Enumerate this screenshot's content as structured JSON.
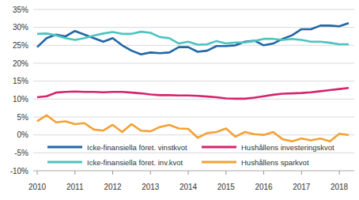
{
  "chart_data": {
    "type": "line",
    "categories": [
      "2010",
      null,
      null,
      null,
      "2011",
      null,
      null,
      null,
      "2012",
      null,
      null,
      null,
      "2013",
      null,
      null,
      null,
      "2014",
      null,
      null,
      null,
      "2015",
      null,
      null,
      null,
      "2016",
      null,
      null,
      null,
      "2017",
      null,
      null,
      null,
      "2018",
      null
    ],
    "series": [
      {
        "name": "Icke-finansiella föret. vinstkvot",
        "color": "#2166a6",
        "values": [
          24.5,
          27,
          28,
          27.5,
          29,
          28,
          27,
          26,
          27,
          25,
          23.5,
          22.5,
          23,
          22.8,
          23,
          24.5,
          24.5,
          23.2,
          23.5,
          24.8,
          24.8,
          25,
          26,
          26.3,
          25,
          25.5,
          26.8,
          27.8,
          29.5,
          29.5,
          30.5,
          30.5,
          30.3,
          31.2
        ]
      },
      {
        "name": "Icke-finansiella föret. inv.kvot",
        "color": "#4cc4bf",
        "values": [
          28.2,
          28.3,
          27.8,
          27,
          26.5,
          27,
          27.7,
          28.3,
          28.7,
          28.2,
          28.2,
          28.8,
          28.5,
          27.3,
          27,
          25.5,
          26,
          25.2,
          25.3,
          26.2,
          25.5,
          25.8,
          25.8,
          26.2,
          26.8,
          26.8,
          26.5,
          26.8,
          26.5,
          26,
          26,
          25.7,
          25.3,
          25.3
        ]
      },
      {
        "name": "Hushållens investeringskvot",
        "color": "#d4256f",
        "values": [
          10.5,
          10.8,
          11.8,
          12,
          12.1,
          12,
          12,
          11.9,
          12,
          12,
          11.8,
          11.6,
          11.3,
          11.1,
          11.1,
          11,
          11,
          10.9,
          10.7,
          10.5,
          10.2,
          10.1,
          10.1,
          10.4,
          10.8,
          11.2,
          11.5,
          11.6,
          11.7,
          11.9,
          12.2,
          12.5,
          12.8,
          13.1
        ]
      },
      {
        "name": "Hushållens sparkvot",
        "color": "#f4a135",
        "values": [
          3.8,
          5.5,
          3.5,
          3.8,
          3,
          3.3,
          1.5,
          1.2,
          2.8,
          0.8,
          3,
          1.2,
          1,
          2.2,
          2.8,
          1.8,
          1.7,
          -0.8,
          0.5,
          0.8,
          1.8,
          -0.5,
          0.8,
          0.2,
          0,
          0.8,
          -1.2,
          -1.8,
          -1,
          -1.5,
          -1,
          -1.8,
          0.3,
          0
        ]
      }
    ],
    "ylim": [
      -10,
      35
    ],
    "yticks": [
      {
        "value": -10,
        "label": "-10%"
      },
      {
        "value": -5,
        "label": "-5%"
      },
      {
        "value": 0,
        "label": "0%"
      },
      {
        "value": 5,
        "label": "5%"
      },
      {
        "value": 10,
        "label": "10%"
      },
      {
        "value": 15,
        "label": "15%"
      },
      {
        "value": 20,
        "label": "20%"
      },
      {
        "value": 25,
        "label": "25%"
      },
      {
        "value": 30,
        "label": "30%"
      },
      {
        "value": 35,
        "label": "35%"
      }
    ],
    "grid": true,
    "legend": "bottom-left"
  }
}
